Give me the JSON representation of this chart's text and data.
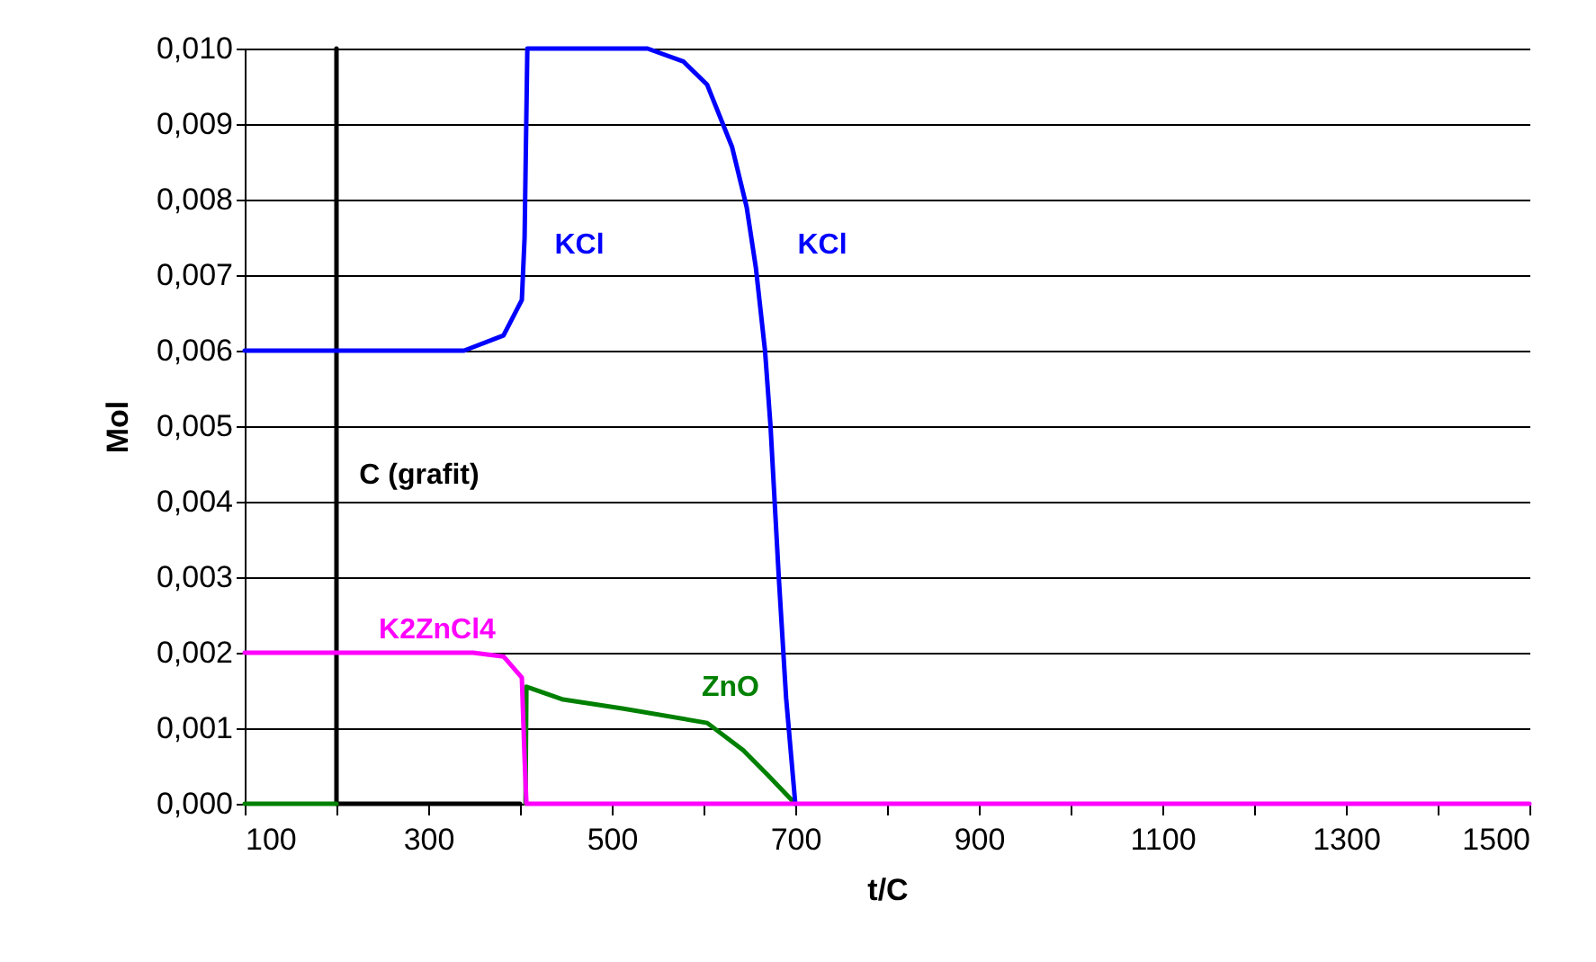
{
  "chart_data": {
    "type": "line",
    "xlabel": "t/C",
    "ylabel": "Mol",
    "xlim": [
      100,
      1500
    ],
    "xticks": [
      100,
      {
        "value": 200,
        "label": null
      },
      300,
      {
        "value": 400,
        "label": null
      },
      500,
      {
        "value": 600,
        "label": null
      },
      700,
      {
        "value": 800,
        "label": null
      },
      900,
      {
        "value": 1000,
        "label": null
      },
      1100,
      {
        "value": 1200,
        "label": null
      },
      1300,
      {
        "value": 1400,
        "label": null
      },
      1500
    ],
    "ylim": [
      0,
      0.01
    ],
    "yticks": [
      {
        "value": 0,
        "label": "0,000"
      },
      {
        "value": 0.001,
        "label": "0,001"
      },
      {
        "value": 0.002,
        "label": "0,002"
      },
      {
        "value": 0.003,
        "label": "0,003"
      },
      {
        "value": 0.004,
        "label": "0,004"
      },
      {
        "value": 0.005,
        "label": "0,005"
      },
      {
        "value": 0.006,
        "label": "0,006"
      },
      {
        "value": 0.007,
        "label": "0,007"
      },
      {
        "value": 0.008,
        "label": "0,008"
      },
      {
        "value": 0.009,
        "label": "0,009"
      },
      {
        "value": 0.01,
        "label": "0,010"
      }
    ],
    "grid": "y",
    "legend": false,
    "marker": "none",
    "line_style": "solid",
    "series": [
      {
        "name": "C (grafit)",
        "color": "#000000",
        "x": [
          200,
          200,
          400
        ],
        "values": [
          0.01,
          0,
          0
        ]
      },
      {
        "name": "ZnO",
        "color": "#008000",
        "x": [
          100,
          200,
          300,
          406,
          407,
          447,
          513,
          604,
          643,
          670,
          692,
          700
        ],
        "values": [
          0,
          0,
          null,
          0,
          0.00155,
          0.00138,
          0.00126,
          0.00107,
          0.00071,
          0.00038,
          0.0001,
          0
        ]
      },
      {
        "name": "KCl",
        "color": "#0000ff",
        "x": [
          100,
          339,
          382,
          402,
          405,
          408,
          539,
          578,
          604,
          631,
          647,
          657,
          667,
          673,
          682,
          690,
          700
        ],
        "values": [
          0.006,
          0.006,
          0.0062,
          0.00667,
          0.0075,
          0.01,
          0.01,
          0.00983,
          0.00952,
          0.0087,
          0.0079,
          0.0071,
          0.006,
          0.005,
          0.003,
          0.0014,
          0
        ]
      },
      {
        "name": "K2ZnCl4",
        "color": "#ff00ff",
        "x": [
          100,
          349,
          382,
          402,
          405,
          407,
          1500
        ],
        "values": [
          0.002,
          0.002,
          0.00195,
          0.00167,
          0.0006,
          0,
          0
        ]
      }
    ],
    "annotations": [
      "KCl"
    ]
  }
}
